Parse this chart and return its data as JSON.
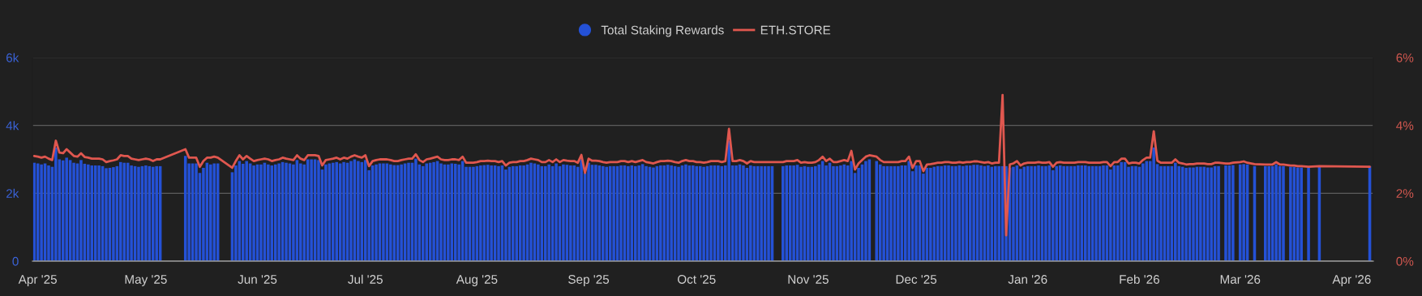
{
  "chart_data": {
    "type": "bar",
    "x": [
      "2025-03-31",
      "2025-04-01",
      "2025-04-02",
      "2025-04-03",
      "2025-04-04",
      "2025-04-05",
      "2025-04-06",
      "2025-04-07",
      "2025-04-08",
      "2025-04-09",
      "2025-04-10",
      "2025-04-11",
      "2025-04-12",
      "2025-04-13",
      "2025-04-14",
      "2025-04-15",
      "2025-04-16",
      "2025-04-17",
      "2025-04-18",
      "2025-04-19",
      "2025-04-20",
      "2025-04-21",
      "2025-04-22",
      "2025-04-23",
      "2025-04-24",
      "2025-04-25",
      "2025-04-26",
      "2025-04-27",
      "2025-04-28",
      "2025-04-29",
      "2025-04-30",
      "2025-05-01",
      "2025-05-02",
      "2025-05-03",
      "2025-05-04",
      "2025-05-05",
      "2025-05-12",
      "2025-05-13",
      "2025-05-14",
      "2025-05-15",
      "2025-05-16",
      "2025-05-17",
      "2025-05-18",
      "2025-05-19",
      "2025-05-20",
      "2025-05-21",
      "2025-05-25",
      "2025-05-26",
      "2025-05-27",
      "2025-05-28",
      "2025-05-29",
      "2025-05-30",
      "2025-05-31",
      "2025-06-01",
      "2025-06-02",
      "2025-06-03",
      "2025-06-04",
      "2025-06-05",
      "2025-06-06",
      "2025-06-07",
      "2025-06-08",
      "2025-06-09",
      "2025-06-10",
      "2025-06-11",
      "2025-06-12",
      "2025-06-13",
      "2025-06-14",
      "2025-06-15",
      "2025-06-16",
      "2025-06-17",
      "2025-06-18",
      "2025-06-19",
      "2025-06-20",
      "2025-06-21",
      "2025-06-22",
      "2025-06-23",
      "2025-06-24",
      "2025-06-25",
      "2025-06-26",
      "2025-06-27",
      "2025-06-28",
      "2025-06-29",
      "2025-06-30",
      "2025-07-01",
      "2025-07-02",
      "2025-07-03",
      "2025-07-04",
      "2025-07-05",
      "2025-07-06",
      "2025-07-07",
      "2025-07-08",
      "2025-07-09",
      "2025-07-10",
      "2025-07-11",
      "2025-07-12",
      "2025-07-13",
      "2025-07-14",
      "2025-07-15",
      "2025-07-16",
      "2025-07-17",
      "2025-07-18",
      "2025-07-19",
      "2025-07-20",
      "2025-07-21",
      "2025-07-22",
      "2025-07-23",
      "2025-07-24",
      "2025-07-25",
      "2025-07-26",
      "2025-07-27",
      "2025-07-28",
      "2025-07-29",
      "2025-07-30",
      "2025-07-31",
      "2025-08-01",
      "2025-08-02",
      "2025-08-03",
      "2025-08-04",
      "2025-08-05",
      "2025-08-06",
      "2025-08-07",
      "2025-08-08",
      "2025-08-09",
      "2025-08-10",
      "2025-08-11",
      "2025-08-12",
      "2025-08-13",
      "2025-08-14",
      "2025-08-15",
      "2025-08-16",
      "2025-08-17",
      "2025-08-18",
      "2025-08-19",
      "2025-08-20",
      "2025-08-21",
      "2025-08-22",
      "2025-08-23",
      "2025-08-24",
      "2025-08-25",
      "2025-08-26",
      "2025-08-27",
      "2025-08-28",
      "2025-08-29",
      "2025-08-30",
      "2025-08-31",
      "2025-09-01",
      "2025-09-02",
      "2025-09-03",
      "2025-09-04",
      "2025-09-05",
      "2025-09-06",
      "2025-09-07",
      "2025-09-08",
      "2025-09-09",
      "2025-09-10",
      "2025-09-11",
      "2025-09-12",
      "2025-09-13",
      "2025-09-14",
      "2025-09-15",
      "2025-09-16",
      "2025-09-17",
      "2025-09-18",
      "2025-09-19",
      "2025-09-20",
      "2025-09-21",
      "2025-09-22",
      "2025-09-23",
      "2025-09-24",
      "2025-09-25",
      "2025-09-26",
      "2025-09-27",
      "2025-09-28",
      "2025-09-29",
      "2025-09-30",
      "2025-10-01",
      "2025-10-02",
      "2025-10-03",
      "2025-10-04",
      "2025-10-05",
      "2025-10-06",
      "2025-10-07",
      "2025-10-08",
      "2025-10-09",
      "2025-10-10",
      "2025-10-11",
      "2025-10-12",
      "2025-10-13",
      "2025-10-14",
      "2025-10-15",
      "2025-10-16",
      "2025-10-17",
      "2025-10-18",
      "2025-10-19",
      "2025-10-20",
      "2025-10-21",
      "2025-10-22",
      "2025-10-25",
      "2025-10-26",
      "2025-10-27",
      "2025-10-28",
      "2025-10-29",
      "2025-10-30",
      "2025-10-31",
      "2025-11-01",
      "2025-11-02",
      "2025-11-03",
      "2025-11-04",
      "2025-11-05",
      "2025-11-06",
      "2025-11-07",
      "2025-11-08",
      "2025-11-09",
      "2025-11-10",
      "2025-11-11",
      "2025-11-12",
      "2025-11-13",
      "2025-11-14",
      "2025-11-15",
      "2025-11-16",
      "2025-11-17",
      "2025-11-18",
      "2025-11-20",
      "2025-11-21",
      "2025-11-22",
      "2025-11-23",
      "2025-11-24",
      "2025-11-25",
      "2025-11-26",
      "2025-11-27",
      "2025-11-28",
      "2025-11-29",
      "2025-11-30",
      "2025-12-01",
      "2025-12-02",
      "2025-12-03",
      "2025-12-04",
      "2025-12-05",
      "2025-12-06",
      "2025-12-07",
      "2025-12-08",
      "2025-12-09",
      "2025-12-10",
      "2025-12-11",
      "2025-12-12",
      "2025-12-13",
      "2025-12-14",
      "2025-12-15",
      "2025-12-16",
      "2025-12-17",
      "2025-12-18",
      "2025-12-19",
      "2025-12-20",
      "2025-12-21",
      "2025-12-22",
      "2025-12-23",
      "2025-12-24",
      "2025-12-25",
      "2025-12-26",
      "2025-12-27",
      "2025-12-28",
      "2025-12-29",
      "2025-12-30",
      "2025-12-31",
      "2026-01-01",
      "2026-01-02",
      "2026-01-03",
      "2026-01-04",
      "2026-01-05",
      "2026-01-06",
      "2026-01-07",
      "2026-01-08",
      "2026-01-09",
      "2026-01-10",
      "2026-01-11",
      "2026-01-12",
      "2026-01-13",
      "2026-01-14",
      "2026-01-15",
      "2026-01-16",
      "2026-01-17",
      "2026-01-18",
      "2026-01-19",
      "2026-01-20",
      "2026-01-21",
      "2026-01-22",
      "2026-01-23",
      "2026-01-24",
      "2026-01-25",
      "2026-01-26",
      "2026-01-27",
      "2026-01-28",
      "2026-01-29",
      "2026-01-30",
      "2026-01-31",
      "2026-02-01",
      "2026-02-02",
      "2026-02-03",
      "2026-02-04",
      "2026-02-05",
      "2026-02-06",
      "2026-02-07",
      "2026-02-08",
      "2026-02-09",
      "2026-02-10",
      "2026-02-11",
      "2026-02-12",
      "2026-02-13",
      "2026-02-14",
      "2026-02-15",
      "2026-02-16",
      "2026-02-17",
      "2026-02-18",
      "2026-02-19",
      "2026-02-20",
      "2026-02-21",
      "2026-02-22",
      "2026-02-23",
      "2026-02-25",
      "2026-02-26",
      "2026-02-27",
      "2026-03-01",
      "2026-03-02",
      "2026-03-03",
      "2026-03-05",
      "2026-03-08",
      "2026-03-09",
      "2026-03-10",
      "2026-03-11",
      "2026-03-12",
      "2026-03-13",
      "2026-03-15",
      "2026-03-16",
      "2026-03-17",
      "2026-03-18",
      "2026-03-20",
      "2026-03-23",
      "2026-04-06"
    ],
    "series": [
      {
        "name": "Total Staking Rewards",
        "color": "#2451d6",
        "values": [
          2900,
          2880,
          2850,
          2880,
          2820,
          2780,
          3350,
          3000,
          2970,
          3050,
          2980,
          2900,
          2880,
          2980,
          2870,
          2850,
          2820,
          2820,
          2820,
          2800,
          2740,
          2750,
          2770,
          2800,
          2920,
          2900,
          2900,
          2820,
          2800,
          2780,
          2800,
          2820,
          2800,
          2780,
          2800,
          2800,
          3100,
          2880,
          2880,
          2880,
          2600,
          2750,
          2900,
          2850,
          2880,
          2880,
          2620,
          2820,
          2950,
          2870,
          2950,
          2880,
          2820,
          2850,
          2850,
          2900,
          2850,
          2820,
          2850,
          2880,
          2920,
          2900,
          2880,
          2850,
          2980,
          2880,
          2850,
          3000,
          3000,
          3000,
          2980,
          2700,
          2850,
          2880,
          2900,
          2920,
          2880,
          2920,
          2900,
          2950,
          3000,
          2950,
          2920,
          2980,
          2680,
          2820,
          2850,
          2880,
          2880,
          2880,
          2850,
          2830,
          2830,
          2850,
          2880,
          2900,
          2900,
          3020,
          2850,
          2800,
          2880,
          2900,
          2920,
          2950,
          2880,
          2850,
          2850,
          2880,
          2870,
          2850,
          2950,
          2780,
          2780,
          2780,
          2800,
          2820,
          2830,
          2840,
          2820,
          2820,
          2800,
          2820,
          2700,
          2780,
          2800,
          2800,
          2820,
          2820,
          2850,
          2900,
          2880,
          2850,
          2800,
          2800,
          2850,
          2800,
          2880,
          2800,
          2850,
          2840,
          2820,
          2820,
          2780,
          3000,
          2600,
          2900,
          2840,
          2840,
          2820,
          2800,
          2780,
          2800,
          2800,
          2800,
          2820,
          2820,
          2800,
          2820,
          2800,
          2820,
          2860,
          2800,
          2780,
          2760,
          2800,
          2820,
          2820,
          2840,
          2820,
          2800,
          2780,
          2820,
          2850,
          2820,
          2820,
          2800,
          2800,
          2780,
          2800,
          2820,
          2820,
          2820,
          2800,
          2820,
          3550,
          2820,
          2820,
          2850,
          2820,
          2750,
          2820,
          2800,
          2800,
          2800,
          2800,
          2800,
          2800,
          2800,
          2820,
          2820,
          2820,
          2840,
          2780,
          2800,
          2780,
          2780,
          2800,
          2850,
          2950,
          2820,
          2900,
          2800,
          2800,
          2820,
          2850,
          2820,
          2950,
          2600,
          2750,
          2850,
          2950,
          3000,
          2950,
          2850,
          2800,
          2800,
          2800,
          2800,
          2800,
          2820,
          2820,
          2950,
          2650,
          2820,
          2820,
          2580,
          2750,
          2750,
          2780,
          2800,
          2800,
          2820,
          2820,
          2800,
          2800,
          2820,
          2800,
          2820,
          2820,
          2840,
          2840,
          2820,
          2800,
          2820,
          2780,
          2800,
          2800,
          2800,
          2800,
          2750,
          2780,
          2820,
          2720,
          2780,
          2800,
          2800,
          2800,
          2820,
          2800,
          2800,
          2820,
          2680,
          2800,
          2820,
          2800,
          2800,
          2800,
          2800,
          2820,
          2820,
          2820,
          2800,
          2800,
          2800,
          2800,
          2820,
          2820,
          2700,
          2820,
          2820,
          2920,
          2920,
          2780,
          2800,
          2800,
          2780,
          2880,
          2950,
          2950,
          3350,
          2860,
          2800,
          2800,
          2800,
          2800,
          2900,
          2800,
          2780,
          2750,
          2760,
          2760,
          2780,
          2780,
          2780,
          2760,
          2760,
          2800,
          2800,
          2820,
          2820,
          2830,
          2850,
          2860,
          2850,
          2800,
          2800,
          2800,
          2800,
          2850,
          2800,
          2800,
          2780,
          2780,
          2760,
          2760,
          2760,
          2800,
          2800
        ]
      },
      {
        "name": "ETH.STORE",
        "type": "line",
        "axis": "y2",
        "color": "#e0574f",
        "values": [
          3.1,
          3.08,
          3.05,
          3.08,
          3.02,
          2.98,
          3.55,
          3.2,
          3.18,
          3.3,
          3.2,
          3.1,
          3.08,
          3.18,
          3.07,
          3.05,
          3.02,
          3.02,
          3.02,
          3.0,
          2.92,
          2.95,
          2.97,
          3.0,
          3.12,
          3.1,
          3.1,
          3.02,
          3.0,
          2.98,
          3.0,
          3.02,
          3.0,
          2.95,
          3.0,
          3.0,
          3.3,
          3.05,
          3.05,
          3.05,
          2.78,
          2.95,
          3.05,
          3.05,
          3.08,
          3.05,
          2.75,
          2.95,
          3.12,
          3.0,
          3.1,
          3.02,
          2.95,
          2.98,
          3.0,
          3.02,
          3.0,
          2.95,
          2.98,
          3.0,
          3.05,
          3.02,
          3.0,
          2.98,
          3.12,
          3.02,
          2.98,
          3.12,
          3.12,
          3.12,
          3.1,
          2.82,
          2.98,
          3.0,
          3.02,
          3.05,
          3.0,
          3.05,
          3.02,
          3.08,
          3.12,
          3.08,
          3.05,
          3.12,
          2.8,
          2.95,
          2.98,
          3.0,
          3.0,
          3.0,
          2.98,
          2.95,
          2.95,
          2.98,
          3.0,
          3.02,
          3.02,
          3.15,
          2.98,
          2.92,
          3.0,
          3.02,
          3.05,
          3.08,
          3.0,
          2.98,
          2.98,
          3.0,
          3.0,
          2.98,
          3.08,
          2.9,
          2.9,
          2.9,
          2.92,
          2.95,
          2.95,
          2.96,
          2.95,
          2.95,
          2.92,
          2.95,
          2.82,
          2.9,
          2.92,
          2.92,
          2.95,
          2.95,
          2.98,
          3.02,
          3.0,
          2.98,
          2.92,
          2.92,
          2.98,
          2.92,
          3.0,
          2.92,
          2.98,
          2.96,
          2.95,
          2.95,
          2.9,
          3.13,
          2.6,
          3.02,
          2.96,
          2.96,
          2.95,
          2.92,
          2.9,
          2.92,
          2.92,
          2.92,
          2.95,
          2.95,
          2.92,
          2.95,
          2.92,
          2.95,
          2.98,
          2.92,
          2.9,
          2.88,
          2.92,
          2.95,
          2.95,
          2.96,
          2.95,
          2.92,
          2.9,
          2.95,
          2.98,
          2.95,
          2.95,
          2.92,
          2.92,
          2.9,
          2.92,
          2.95,
          2.95,
          2.95,
          2.92,
          2.95,
          3.9,
          2.95,
          2.95,
          2.98,
          2.95,
          2.88,
          2.95,
          2.92,
          2.92,
          2.92,
          2.92,
          2.92,
          2.92,
          2.92,
          2.95,
          2.95,
          2.95,
          2.98,
          2.9,
          2.92,
          2.9,
          2.9,
          2.92,
          2.98,
          3.08,
          2.95,
          3.02,
          2.92,
          2.92,
          2.95,
          2.98,
          2.95,
          3.25,
          2.7,
          2.88,
          2.98,
          3.08,
          3.12,
          3.08,
          2.98,
          2.92,
          2.92,
          2.92,
          2.92,
          2.92,
          2.95,
          2.95,
          3.08,
          2.75,
          2.95,
          2.95,
          2.65,
          2.85,
          2.86,
          2.88,
          2.9,
          2.9,
          2.92,
          2.92,
          2.9,
          2.9,
          2.92,
          2.9,
          2.92,
          2.92,
          2.94,
          2.94,
          2.92,
          2.9,
          2.92,
          2.88,
          2.9,
          2.9,
          4.9,
          0.76,
          2.85,
          2.88,
          2.95,
          2.82,
          2.88,
          2.9,
          2.9,
          2.9,
          2.92,
          2.9,
          2.9,
          2.92,
          2.78,
          2.9,
          2.92,
          2.9,
          2.9,
          2.9,
          2.9,
          2.92,
          2.92,
          2.92,
          2.9,
          2.9,
          2.9,
          2.9,
          2.92,
          2.92,
          2.8,
          2.92,
          2.92,
          3.02,
          3.02,
          2.88,
          2.9,
          2.9,
          2.88,
          2.98,
          3.05,
          3.05,
          3.83,
          2.96,
          2.9,
          2.9,
          2.9,
          2.9,
          3.0,
          2.9,
          2.88,
          2.85,
          2.86,
          2.86,
          2.88,
          2.88,
          2.88,
          2.86,
          2.86,
          2.9,
          2.9,
          2.88,
          2.88,
          2.9,
          2.92,
          2.94,
          2.9,
          2.86,
          2.85,
          2.85,
          2.85,
          2.92,
          2.85,
          2.85,
          2.82,
          2.82,
          2.8,
          2.8,
          2.78,
          2.8,
          2.78
        ]
      }
    ],
    "xlim": [
      "2025-03-30T12:00",
      "2026-04-07"
    ],
    "xticks": [
      {
        "value": "2025-04-01",
        "label": "Apr '25"
      },
      {
        "value": "2025-05-01",
        "label": "May '25"
      },
      {
        "value": "2025-06-01",
        "label": "Jun '25"
      },
      {
        "value": "2025-07-01",
        "label": "Jul '25"
      },
      {
        "value": "2025-08-01",
        "label": "Aug '25"
      },
      {
        "value": "2025-09-01",
        "label": "Sep '25"
      },
      {
        "value": "2025-10-01",
        "label": "Oct '25"
      },
      {
        "value": "2025-11-01",
        "label": "Nov '25"
      },
      {
        "value": "2025-12-01",
        "label": "Dec '25"
      },
      {
        "value": "2026-01-01",
        "label": "Jan '26"
      },
      {
        "value": "2026-02-01",
        "label": "Feb '26"
      },
      {
        "value": "2026-03-01",
        "label": "Mar '26"
      },
      {
        "value": "2026-04-01",
        "label": "Apr '26"
      }
    ],
    "ylim": [
      0,
      6000
    ],
    "yticks": [
      0,
      {
        "value": 2000,
        "label": "2k"
      },
      {
        "value": 4000,
        "label": "4k"
      },
      {
        "value": 6000,
        "label": "6k"
      }
    ],
    "y2lim": [
      0,
      6
    ],
    "y2ticks": [
      {
        "value": 0,
        "label": "0%"
      },
      {
        "value": 2,
        "label": "2%"
      },
      {
        "value": 4,
        "label": "4%"
      },
      {
        "value": 6,
        "label": "6%"
      }
    ],
    "grid": "y",
    "legend": "top"
  }
}
